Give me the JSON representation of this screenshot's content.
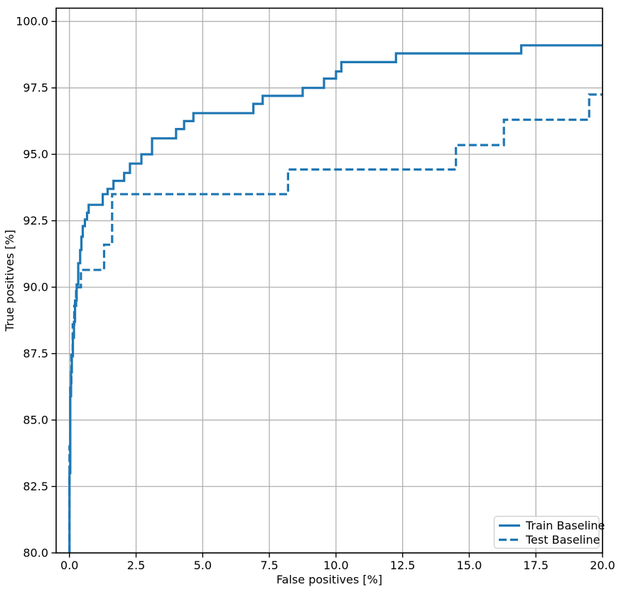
{
  "chart_data": {
    "type": "line",
    "title": "",
    "xlabel": "False positives [%]",
    "ylabel": "True positives [%]",
    "xlim": [
      -0.5,
      20
    ],
    "ylim": [
      80,
      100.5
    ],
    "grid": true,
    "legend": {
      "position": "lower right",
      "entries": [
        "Train Baseline",
        "Test Baseline"
      ]
    },
    "xticks": {
      "values": [
        0,
        2.5,
        5,
        7.5,
        10,
        12.5,
        15,
        17.5,
        20
      ],
      "labels": [
        "0.0",
        "2.5",
        "5.0",
        "7.5",
        "10.0",
        "12.5",
        "15.0",
        "17.5",
        "20.0"
      ]
    },
    "yticks": {
      "values": [
        80,
        82.5,
        85,
        87.5,
        90,
        92.5,
        95,
        97.5,
        100
      ],
      "labels": [
        "80.0",
        "82.5",
        "85.0",
        "87.5",
        "90.0",
        "92.5",
        "95.0",
        "97.5",
        "100.0"
      ]
    },
    "series": [
      {
        "name": "Train Baseline",
        "style": "solid",
        "color": "#1f77b4",
        "points": [
          [
            0,
            80
          ],
          [
            0,
            83
          ],
          [
            0.03,
            83
          ],
          [
            0.03,
            85.9
          ],
          [
            0.06,
            85.9
          ],
          [
            0.06,
            86.8
          ],
          [
            0.09,
            86.8
          ],
          [
            0.09,
            87.4
          ],
          [
            0.13,
            87.4
          ],
          [
            0.13,
            88.1
          ],
          [
            0.17,
            88.1
          ],
          [
            0.17,
            88.7
          ],
          [
            0.21,
            88.7
          ],
          [
            0.21,
            89.5
          ],
          [
            0.27,
            89.5
          ],
          [
            0.27,
            90.1
          ],
          [
            0.33,
            90.1
          ],
          [
            0.33,
            90.9
          ],
          [
            0.4,
            90.9
          ],
          [
            0.4,
            91.4
          ],
          [
            0.45,
            91.4
          ],
          [
            0.45,
            91.9
          ],
          [
            0.5,
            91.9
          ],
          [
            0.5,
            92.3
          ],
          [
            0.58,
            92.3
          ],
          [
            0.58,
            92.55
          ],
          [
            0.66,
            92.55
          ],
          [
            0.66,
            92.8
          ],
          [
            0.72,
            92.8
          ],
          [
            0.72,
            93.1
          ],
          [
            1.25,
            93.1
          ],
          [
            1.25,
            93.5
          ],
          [
            1.43,
            93.5
          ],
          [
            1.43,
            93.7
          ],
          [
            1.65,
            93.7
          ],
          [
            1.65,
            94.0
          ],
          [
            2.05,
            94.0
          ],
          [
            2.05,
            94.3
          ],
          [
            2.27,
            94.3
          ],
          [
            2.27,
            94.65
          ],
          [
            2.7,
            94.65
          ],
          [
            2.7,
            95.0
          ],
          [
            3.1,
            95.0
          ],
          [
            3.1,
            95.6
          ],
          [
            4.0,
            95.6
          ],
          [
            4.0,
            95.95
          ],
          [
            4.3,
            95.95
          ],
          [
            4.3,
            96.25
          ],
          [
            4.65,
            96.25
          ],
          [
            4.65,
            96.55
          ],
          [
            6.9,
            96.55
          ],
          [
            6.9,
            96.9
          ],
          [
            7.25,
            96.9
          ],
          [
            7.25,
            97.2
          ],
          [
            8.75,
            97.2
          ],
          [
            8.75,
            97.5
          ],
          [
            9.55,
            97.5
          ],
          [
            9.55,
            97.85
          ],
          [
            10.0,
            97.85
          ],
          [
            10.0,
            98.12
          ],
          [
            10.2,
            98.12
          ],
          [
            10.2,
            98.47
          ],
          [
            12.25,
            98.47
          ],
          [
            12.25,
            98.8
          ],
          [
            16.95,
            98.8
          ],
          [
            16.95,
            99.1
          ],
          [
            20,
            99.1
          ]
        ]
      },
      {
        "name": "Test Baseline",
        "style": "dashed",
        "color": "#1f77b4",
        "points": [
          [
            0,
            80
          ],
          [
            0,
            84
          ],
          [
            0.03,
            84
          ],
          [
            0.03,
            86.3
          ],
          [
            0.07,
            86.3
          ],
          [
            0.07,
            87.6
          ],
          [
            0.12,
            87.6
          ],
          [
            0.12,
            88.6
          ],
          [
            0.18,
            88.6
          ],
          [
            0.18,
            89.3
          ],
          [
            0.25,
            89.3
          ],
          [
            0.25,
            90.0
          ],
          [
            0.43,
            90.0
          ],
          [
            0.43,
            90.65
          ],
          [
            1.3,
            90.65
          ],
          [
            1.3,
            91.6
          ],
          [
            1.6,
            91.6
          ],
          [
            1.6,
            93.5
          ],
          [
            8.2,
            93.5
          ],
          [
            8.2,
            94.43
          ],
          [
            14.5,
            94.43
          ],
          [
            14.5,
            95.35
          ],
          [
            16.3,
            95.35
          ],
          [
            16.3,
            96.3
          ],
          [
            19.5,
            96.3
          ],
          [
            19.5,
            97.25
          ],
          [
            20,
            97.25
          ]
        ]
      }
    ]
  },
  "colors": {
    "line": "#1f77b4",
    "grid": "#b0b0b0",
    "spine": "#000000",
    "text": "#000000",
    "legend_border": "#cccccc",
    "background": "#ffffff"
  }
}
